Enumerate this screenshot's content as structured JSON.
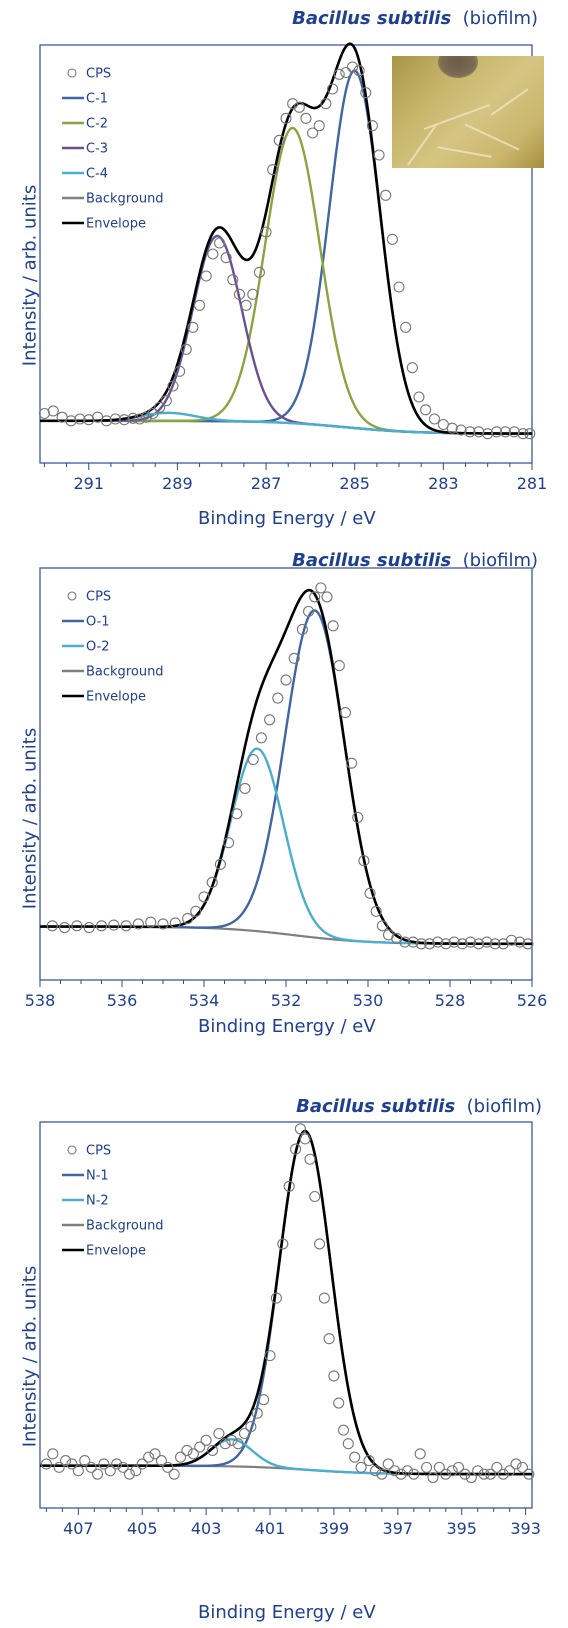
{
  "panels": [
    {
      "title_species": "Bacillus subtilis",
      "title_suffix": "(biofilm)",
      "ylabel": "Intensity / arb. units",
      "xlabel": "Binding Energy / eV",
      "has_photo": true
    },
    {
      "title_species": "Bacillus subtilis",
      "title_suffix": "(biofilm)",
      "ylabel": "Intensity / arb. units",
      "xlabel": "Binding Energy / eV",
      "has_photo": false
    },
    {
      "title_species": "Bacillus subtilis",
      "title_suffix": "(biofilm)",
      "ylabel": "Intensity / arb. units",
      "xlabel": "Binding Energy / eV",
      "has_photo": false
    }
  ],
  "chart_data": [
    {
      "type": "line",
      "title": "Bacillus subtilis (biofilm)",
      "xlabel": "Binding Energy / eV",
      "ylabel": "Intensity / arb. units",
      "xlim": [
        292.1,
        281
      ],
      "x_reversed": true,
      "ylim": [
        -0.08,
        1.06
      ],
      "xticks": [
        291,
        289,
        287,
        285,
        283,
        281
      ],
      "grid": false,
      "legend_position": "top-left",
      "background": {
        "y_high": 0.035,
        "y_low": 0.0,
        "center": 285.2,
        "width": 0.8
      },
      "peaks": [
        {
          "name": "C-1",
          "center": 285.0,
          "height": 0.975,
          "fwhm": 1.35,
          "color": "#3f66a3"
        },
        {
          "name": "C-2",
          "center": 286.4,
          "height": 0.805,
          "fwhm": 1.45,
          "color": "#8aa43f"
        },
        {
          "name": "C-3",
          "center": 288.1,
          "height": 0.505,
          "fwhm": 1.3,
          "color": "#6a4f93"
        },
        {
          "name": "C-4",
          "center": 289.2,
          "height": 0.022,
          "fwhm": 1.4,
          "color": "#4aaed0"
        }
      ],
      "legend": [
        {
          "label": "CPS",
          "kind": "marker",
          "color": "#777777"
        },
        {
          "label": "C-1",
          "kind": "line",
          "color": "#3f66a3"
        },
        {
          "label": "C-2",
          "kind": "line",
          "color": "#8aa43f"
        },
        {
          "label": "C-3",
          "kind": "line",
          "color": "#6a4f93"
        },
        {
          "label": "C-4",
          "kind": "line",
          "color": "#4aaed0"
        },
        {
          "label": "Background",
          "kind": "line",
          "color": "#808080"
        },
        {
          "label": "Envelope",
          "kind": "line",
          "color": "#000000"
        }
      ],
      "cps_points": [
        [
          292.0,
          0.055
        ],
        [
          291.8,
          0.062
        ],
        [
          291.6,
          0.045
        ],
        [
          291.4,
          0.035
        ],
        [
          291.2,
          0.04
        ],
        [
          291.0,
          0.038
        ],
        [
          290.8,
          0.045
        ],
        [
          290.6,
          0.035
        ],
        [
          290.4,
          0.04
        ],
        [
          290.2,
          0.038
        ],
        [
          290.0,
          0.042
        ],
        [
          289.85,
          0.04
        ],
        [
          289.7,
          0.045
        ],
        [
          289.55,
          0.055
        ],
        [
          289.4,
          0.072
        ],
        [
          289.25,
          0.09
        ],
        [
          289.1,
          0.13
        ],
        [
          288.95,
          0.17
        ],
        [
          288.8,
          0.23
        ],
        [
          288.65,
          0.29
        ],
        [
          288.5,
          0.35
        ],
        [
          288.35,
          0.43
        ],
        [
          288.2,
          0.49
        ],
        [
          288.05,
          0.52
        ],
        [
          287.9,
          0.48
        ],
        [
          287.75,
          0.42
        ],
        [
          287.6,
          0.38
        ],
        [
          287.45,
          0.35
        ],
        [
          287.3,
          0.38
        ],
        [
          287.15,
          0.44
        ],
        [
          287.0,
          0.55
        ],
        [
          286.85,
          0.72
        ],
        [
          286.7,
          0.8
        ],
        [
          286.55,
          0.86
        ],
        [
          286.4,
          0.9
        ],
        [
          286.25,
          0.89
        ],
        [
          286.1,
          0.86
        ],
        [
          285.95,
          0.82
        ],
        [
          285.8,
          0.84
        ],
        [
          285.65,
          0.9
        ],
        [
          285.5,
          0.94
        ],
        [
          285.35,
          0.98
        ],
        [
          285.2,
          0.985
        ],
        [
          285.05,
          1.0
        ],
        [
          284.9,
          0.99
        ],
        [
          284.75,
          0.93
        ],
        [
          284.6,
          0.84
        ],
        [
          284.45,
          0.76
        ],
        [
          284.3,
          0.65
        ],
        [
          284.15,
          0.53
        ],
        [
          284.0,
          0.4
        ],
        [
          283.85,
          0.29
        ],
        [
          283.7,
          0.18
        ],
        [
          283.55,
          0.1
        ],
        [
          283.4,
          0.065
        ],
        [
          283.2,
          0.04
        ],
        [
          283.0,
          0.025
        ],
        [
          282.8,
          0.015
        ],
        [
          282.6,
          0.01
        ],
        [
          282.4,
          0.005
        ],
        [
          282.2,
          0.005
        ],
        [
          282.0,
          0.0
        ],
        [
          281.8,
          0.005
        ],
        [
          281.6,
          0.005
        ],
        [
          281.4,
          0.005
        ],
        [
          281.2,
          0.0
        ],
        [
          281.05,
          0.0
        ]
      ]
    },
    {
      "type": "line",
      "title": "Bacillus subtilis (biofilm)",
      "xlabel": "Binding Energy / eV",
      "ylabel": "Intensity / arb. units",
      "xlim": [
        538,
        526
      ],
      "x_reversed": true,
      "ylim": [
        -0.1,
        1.04
      ],
      "xticks": [
        538,
        536,
        534,
        532,
        530,
        528,
        526
      ],
      "grid": false,
      "legend_position": "top-left",
      "background": {
        "y_high": 0.048,
        "y_low": 0.0,
        "center": 531.8,
        "width": 0.9
      },
      "peaks": [
        {
          "name": "O-1",
          "center": 531.3,
          "height": 0.905,
          "fwhm": 1.7,
          "color": "#3f66a3"
        },
        {
          "name": "O-2",
          "center": 532.7,
          "height": 0.505,
          "fwhm": 1.5,
          "color": "#4aaed0"
        }
      ],
      "legend": [
        {
          "label": "CPS",
          "kind": "marker",
          "color": "#777777"
        },
        {
          "label": "O-1",
          "kind": "line",
          "color": "#3f66a3"
        },
        {
          "label": "O-2",
          "kind": "line",
          "color": "#4aaed0"
        },
        {
          "label": "Background",
          "kind": "line",
          "color": "#808080"
        },
        {
          "label": "Envelope",
          "kind": "line",
          "color": "#000000"
        }
      ],
      "cps_points": [
        [
          537.7,
          0.05
        ],
        [
          537.4,
          0.045
        ],
        [
          537.1,
          0.05
        ],
        [
          536.8,
          0.045
        ],
        [
          536.5,
          0.05
        ],
        [
          536.2,
          0.052
        ],
        [
          535.9,
          0.05
        ],
        [
          535.6,
          0.055
        ],
        [
          535.3,
          0.06
        ],
        [
          535.0,
          0.055
        ],
        [
          534.7,
          0.058
        ],
        [
          534.4,
          0.07
        ],
        [
          534.2,
          0.09
        ],
        [
          534.0,
          0.13
        ],
        [
          533.8,
          0.17
        ],
        [
          533.6,
          0.22
        ],
        [
          533.4,
          0.28
        ],
        [
          533.2,
          0.36
        ],
        [
          533.0,
          0.43
        ],
        [
          532.8,
          0.51
        ],
        [
          532.6,
          0.57
        ],
        [
          532.4,
          0.62
        ],
        [
          532.2,
          0.68
        ],
        [
          532.0,
          0.73
        ],
        [
          531.8,
          0.79
        ],
        [
          531.6,
          0.87
        ],
        [
          531.45,
          0.92
        ],
        [
          531.3,
          0.96
        ],
        [
          531.15,
          0.985
        ],
        [
          531.0,
          0.96
        ],
        [
          530.85,
          0.88
        ],
        [
          530.7,
          0.77
        ],
        [
          530.55,
          0.64
        ],
        [
          530.4,
          0.5
        ],
        [
          530.25,
          0.35
        ],
        [
          530.1,
          0.23
        ],
        [
          529.95,
          0.14
        ],
        [
          529.8,
          0.09
        ],
        [
          529.65,
          0.05
        ],
        [
          529.5,
          0.025
        ],
        [
          529.3,
          0.015
        ],
        [
          529.1,
          0.005
        ],
        [
          528.9,
          0.005
        ],
        [
          528.7,
          0.0
        ],
        [
          528.5,
          0.0
        ],
        [
          528.3,
          0.005
        ],
        [
          528.1,
          0.0
        ],
        [
          527.9,
          0.005
        ],
        [
          527.7,
          0.0
        ],
        [
          527.5,
          0.005
        ],
        [
          527.3,
          0.0
        ],
        [
          527.1,
          0.005
        ],
        [
          526.9,
          0.0
        ],
        [
          526.7,
          0.0
        ],
        [
          526.5,
          0.01
        ],
        [
          526.3,
          0.005
        ],
        [
          526.1,
          0.0
        ]
      ]
    },
    {
      "type": "line",
      "title": "Bacillus subtilis (biofilm)",
      "xlabel": "Binding Energy / eV",
      "ylabel": "Intensity / arb. units",
      "xlim": [
        408.2,
        392.8
      ],
      "x_reversed": true,
      "ylim": [
        -0.1,
        1.04
      ],
      "xticks": [
        407,
        405,
        403,
        401,
        399,
        397,
        395,
        393
      ],
      "grid": false,
      "legend_position": "top-left",
      "background": {
        "y_high": 0.025,
        "y_low": 0.0,
        "center": 399.8,
        "width": 1.0
      },
      "peaks": [
        {
          "name": "N-1",
          "center": 399.9,
          "height": 1.0,
          "fwhm": 1.9,
          "color": "#3f66a3"
        },
        {
          "name": "N-2",
          "center": 402.2,
          "height": 0.08,
          "fwhm": 1.5,
          "color": "#4aaed0"
        }
      ],
      "legend": [
        {
          "label": "CPS",
          "kind": "marker",
          "color": "#777777"
        },
        {
          "label": "N-1",
          "kind": "line",
          "color": "#3f66a3"
        },
        {
          "label": "N-2",
          "kind": "line",
          "color": "#4aaed0"
        },
        {
          "label": "Background",
          "kind": "line",
          "color": "#808080"
        },
        {
          "label": "Envelope",
          "kind": "line",
          "color": "#000000"
        }
      ],
      "cps_points": [
        [
          408.0,
          0.03
        ],
        [
          407.8,
          0.06
        ],
        [
          407.6,
          0.02
        ],
        [
          407.4,
          0.04
        ],
        [
          407.2,
          0.03
        ],
        [
          407.0,
          0.01
        ],
        [
          406.8,
          0.04
        ],
        [
          406.6,
          0.02
        ],
        [
          406.4,
          0.0
        ],
        [
          406.2,
          0.03
        ],
        [
          406.0,
          0.01
        ],
        [
          405.8,
          0.03
        ],
        [
          405.6,
          0.02
        ],
        [
          405.4,
          0.0
        ],
        [
          405.2,
          0.01
        ],
        [
          405.0,
          0.03
        ],
        [
          404.8,
          0.05
        ],
        [
          404.6,
          0.06
        ],
        [
          404.4,
          0.04
        ],
        [
          404.2,
          0.02
        ],
        [
          404.0,
          0.0
        ],
        [
          403.8,
          0.05
        ],
        [
          403.6,
          0.07
        ],
        [
          403.4,
          0.06
        ],
        [
          403.2,
          0.08
        ],
        [
          403.0,
          0.1
        ],
        [
          402.8,
          0.07
        ],
        [
          402.6,
          0.12
        ],
        [
          402.4,
          0.09
        ],
        [
          402.2,
          0.1
        ],
        [
          402.0,
          0.09
        ],
        [
          401.8,
          0.12
        ],
        [
          401.6,
          0.14
        ],
        [
          401.4,
          0.18
        ],
        [
          401.2,
          0.22
        ],
        [
          401.0,
          0.35
        ],
        [
          400.8,
          0.52
        ],
        [
          400.6,
          0.68
        ],
        [
          400.4,
          0.85
        ],
        [
          400.2,
          0.96
        ],
        [
          400.05,
          1.02
        ],
        [
          399.9,
          0.99
        ],
        [
          399.75,
          0.93
        ],
        [
          399.6,
          0.82
        ],
        [
          399.45,
          0.68
        ],
        [
          399.3,
          0.52
        ],
        [
          399.15,
          0.4
        ],
        [
          399.0,
          0.29
        ],
        [
          398.85,
          0.21
        ],
        [
          398.7,
          0.13
        ],
        [
          398.55,
          0.09
        ],
        [
          398.35,
          0.05
        ],
        [
          398.15,
          0.02
        ],
        [
          397.9,
          0.04
        ],
        [
          397.7,
          0.01
        ],
        [
          397.5,
          0.0
        ],
        [
          397.3,
          0.03
        ],
        [
          397.1,
          0.01
        ],
        [
          396.9,
          0.0
        ],
        [
          396.7,
          0.01
        ],
        [
          396.5,
          0.0
        ],
        [
          396.3,
          0.06
        ],
        [
          396.1,
          0.02
        ],
        [
          395.9,
          -0.01
        ],
        [
          395.7,
          0.02
        ],
        [
          395.5,
          0.0
        ],
        [
          395.3,
          0.01
        ],
        [
          395.1,
          0.02
        ],
        [
          394.9,
          0.0
        ],
        [
          394.7,
          -0.01
        ],
        [
          394.5,
          0.01
        ],
        [
          394.3,
          0.0
        ],
        [
          394.1,
          0.0
        ],
        [
          393.9,
          0.02
        ],
        [
          393.7,
          0.0
        ],
        [
          393.5,
          0.01
        ],
        [
          393.3,
          0.03
        ],
        [
          393.1,
          0.02
        ],
        [
          392.9,
          0.0
        ]
      ]
    }
  ]
}
